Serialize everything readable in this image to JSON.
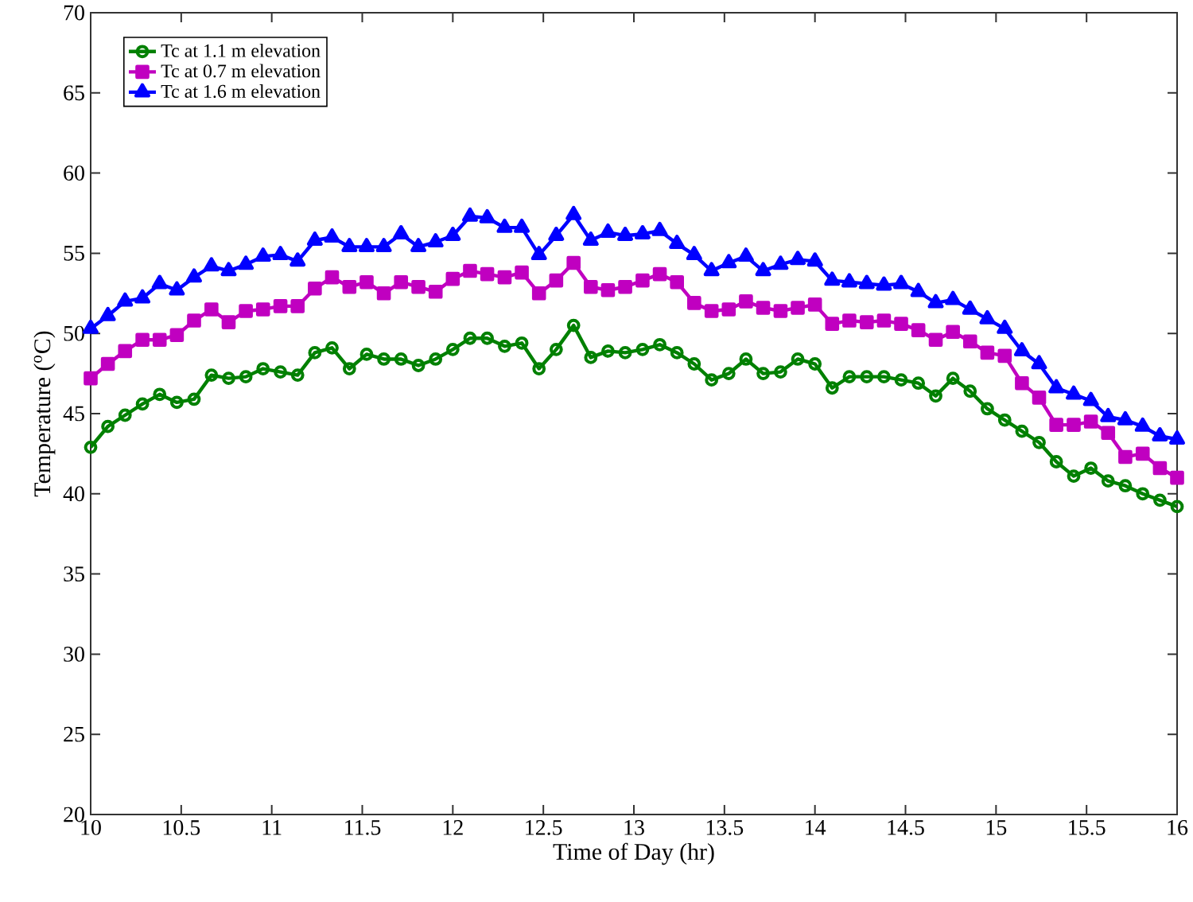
{
  "chart_data": {
    "type": "line",
    "xlabel": "Time of Day (hr)",
    "ylabel": "Temperature ($^{o}$C)",
    "x": [
      10,
      10.095,
      10.19,
      10.286,
      10.381,
      10.476,
      10.571,
      10.667,
      10.762,
      10.857,
      10.952,
      11.048,
      11.143,
      11.238,
      11.333,
      11.429,
      11.524,
      11.619,
      11.714,
      11.81,
      11.905,
      12,
      12.095,
      12.19,
      12.286,
      12.381,
      12.476,
      12.571,
      12.667,
      12.762,
      12.857,
      12.952,
      13.048,
      13.143,
      13.238,
      13.333,
      13.429,
      13.524,
      13.619,
      13.714,
      13.81,
      13.905,
      14,
      14.095,
      14.19,
      14.286,
      14.381,
      14.476,
      14.571,
      14.667,
      14.762,
      14.857,
      14.952,
      15.048,
      15.143,
      15.238,
      15.333,
      15.429,
      15.524,
      15.619,
      15.714,
      15.81,
      15.905,
      16
    ],
    "series": [
      {
        "name": "Tc at 1.1 m elevation",
        "color": "#008000",
        "marker": "circle",
        "values": [
          42.9,
          44.2,
          44.9,
          45.6,
          46.2,
          45.7,
          45.9,
          47.4,
          47.2,
          47.3,
          47.8,
          47.6,
          47.4,
          48.8,
          49.1,
          47.8,
          48.7,
          48.4,
          48.4,
          48.0,
          48.4,
          49.0,
          49.7,
          49.7,
          49.2,
          49.4,
          47.8,
          49.0,
          50.5,
          48.5,
          48.9,
          48.8,
          49.0,
          49.3,
          48.8,
          48.1,
          47.1,
          47.5,
          48.4,
          47.5,
          47.6,
          48.4,
          48.1,
          46.6,
          47.3,
          47.3,
          47.3,
          47.1,
          46.9,
          46.1,
          47.2,
          46.4,
          45.3,
          44.6,
          43.9,
          43.2,
          42.0,
          41.1,
          41.6,
          40.8,
          40.5,
          40.0,
          39.6,
          39.2
        ]
      },
      {
        "name": "Tc at 0.7 m elevation",
        "color": "#c000c0",
        "marker": "square",
        "values": [
          47.2,
          48.1,
          48.9,
          49.6,
          49.6,
          49.9,
          50.8,
          51.5,
          50.7,
          51.4,
          51.5,
          51.7,
          51.7,
          52.8,
          53.5,
          52.9,
          53.2,
          52.5,
          53.2,
          52.9,
          52.6,
          53.4,
          53.9,
          53.7,
          53.5,
          53.8,
          52.5,
          53.3,
          54.4,
          52.9,
          52.7,
          52.9,
          53.3,
          53.7,
          53.2,
          51.9,
          51.4,
          51.5,
          52.0,
          51.6,
          51.4,
          51.6,
          51.8,
          50.6,
          50.8,
          50.7,
          50.8,
          50.6,
          50.2,
          49.6,
          50.1,
          49.5,
          48.8,
          48.6,
          46.9,
          46.0,
          44.3,
          44.3,
          44.5,
          43.8,
          42.3,
          42.5,
          41.6,
          41.0
        ]
      },
      {
        "name": "Tc at 1.6 m elevation",
        "color": "#0000ff",
        "marker": "triangle",
        "values": [
          50.3,
          51.1,
          52.0,
          52.2,
          53.1,
          52.7,
          53.5,
          54.2,
          53.9,
          54.3,
          54.8,
          54.9,
          54.5,
          55.8,
          56.0,
          55.4,
          55.4,
          55.4,
          56.2,
          55.4,
          55.7,
          56.1,
          57.3,
          57.2,
          56.6,
          56.6,
          54.9,
          56.1,
          57.4,
          55.8,
          56.3,
          56.1,
          56.2,
          56.4,
          55.6,
          54.9,
          53.9,
          54.4,
          54.8,
          53.9,
          54.3,
          54.6,
          54.5,
          53.3,
          53.2,
          53.1,
          53.0,
          53.1,
          52.6,
          51.9,
          52.1,
          51.5,
          50.9,
          50.3,
          48.9,
          48.1,
          46.6,
          46.2,
          45.8,
          44.8,
          44.6,
          44.2,
          43.6,
          43.4
        ]
      }
    ],
    "xlim": [
      10,
      16
    ],
    "ylim": [
      20,
      70
    ],
    "xticks": [
      10,
      10.5,
      11,
      11.5,
      12,
      12.5,
      13,
      13.5,
      14,
      14.5,
      15,
      15.5,
      16
    ],
    "yticks": [
      20,
      25,
      30,
      35,
      40,
      45,
      50,
      55,
      60,
      65,
      70
    ],
    "legend": "top left",
    "grid": false,
    "line_style": "solid"
  }
}
